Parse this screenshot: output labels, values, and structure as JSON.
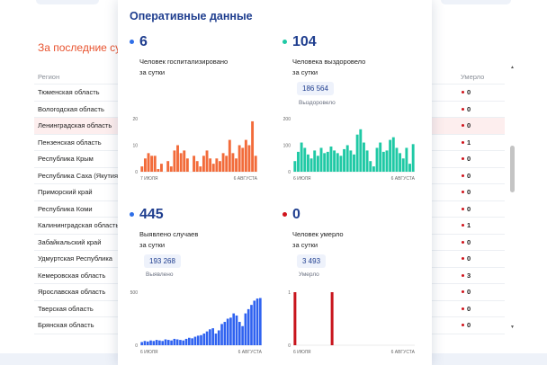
{
  "background": {
    "section_title": "За последние сутки",
    "col_region": "Регион",
    "col_deaths": "Умерло",
    "rows": [
      {
        "name": "Тюменская область",
        "deaths": "0",
        "highlight": false
      },
      {
        "name": "Вологодская область",
        "deaths": "0",
        "highlight": false
      },
      {
        "name": "Ленинградская область",
        "deaths": "0",
        "highlight": true
      },
      {
        "name": "Пензенская область",
        "deaths": "1",
        "highlight": false
      },
      {
        "name": "Республика Крым",
        "deaths": "0",
        "highlight": false
      },
      {
        "name": "Республика Саха (Якутия)",
        "deaths": "0",
        "highlight": false
      },
      {
        "name": "Приморский край",
        "deaths": "0",
        "highlight": false
      },
      {
        "name": "Республика Коми",
        "deaths": "0",
        "highlight": false
      },
      {
        "name": "Калининградская область",
        "deaths": "1",
        "highlight": false
      },
      {
        "name": "Забайкальский край",
        "deaths": "0",
        "highlight": false
      },
      {
        "name": "Удмуртская Республика",
        "deaths": "0",
        "highlight": false
      },
      {
        "name": "Кемеровская область",
        "deaths": "3",
        "highlight": false
      },
      {
        "name": "Ярославская область",
        "deaths": "0",
        "highlight": false
      },
      {
        "name": "Тверская область",
        "deaths": "0",
        "highlight": false
      },
      {
        "name": "Брянская область",
        "deaths": "0",
        "highlight": false
      }
    ]
  },
  "modal": {
    "title": "Оперативные данные",
    "panels": {
      "hospitalized": {
        "number": "6",
        "desc_line1": "Человек госпитализировано",
        "desc_line2": "за сутки",
        "dot_color": "#2f6fe8"
      },
      "recovered": {
        "number": "104",
        "desc_line1": "Человека выздоровело",
        "desc_line2": "за сутки",
        "total": "186 564",
        "total_label": "Выздоровело",
        "dot_color": "#1fc9a5"
      },
      "infected": {
        "number": "445",
        "desc_line1": "Выявлено случаев",
        "desc_line2": "за сутки",
        "total": "193 268",
        "total_label": "Выявлено",
        "dot_color": "#2f6fe8"
      },
      "died": {
        "number": "0",
        "desc_line1": "Человек умерло",
        "desc_line2": "за сутки",
        "total": "3 493",
        "total_label": "Умерло",
        "dot_color": "#d0141c"
      }
    }
  },
  "chart_data": [
    {
      "type": "bar",
      "series": [
        {
          "values": [
            2,
            5,
            7,
            6,
            6,
            1,
            3,
            0,
            4,
            2,
            8,
            10,
            7,
            8,
            5,
            0,
            6,
            4,
            2,
            6,
            8,
            5,
            3,
            5,
            4,
            7,
            6,
            12,
            7,
            5,
            10,
            9,
            12,
            10,
            19,
            6
          ]
        }
      ],
      "x_tick_labels": [
        "7 ИЮЛЯ",
        "6 АВГУСТА"
      ],
      "y_ticks": [
        "0",
        "10",
        "20"
      ],
      "ylim": [
        0,
        20
      ],
      "color": "#f26b3a"
    },
    {
      "type": "bar",
      "series": [
        {
          "values": [
            40,
            75,
            110,
            90,
            65,
            50,
            80,
            60,
            90,
            70,
            75,
            95,
            80,
            70,
            60,
            85,
            100,
            80,
            65,
            140,
            160,
            110,
            80,
            40,
            20,
            90,
            110,
            75,
            80,
            120,
            130,
            90,
            70,
            50,
            90,
            30,
            104
          ]
        }
      ],
      "x_tick_labels": [
        "6 ИЮЛЯ",
        "6 АВГУСТА"
      ],
      "y_ticks": [
        "0",
        "100",
        "200"
      ],
      "ylim": [
        0,
        200
      ],
      "color": "#1fc9a5"
    },
    {
      "type": "bar",
      "series": [
        {
          "values": [
            30,
            40,
            35,
            45,
            40,
            50,
            45,
            40,
            55,
            50,
            45,
            60,
            55,
            50,
            45,
            60,
            70,
            65,
            80,
            90,
            95,
            110,
            130,
            150,
            160,
            110,
            140,
            200,
            220,
            250,
            260,
            300,
            280,
            220,
            180,
            300,
            340,
            380,
            420,
            440,
            445
          ]
        }
      ],
      "x_tick_labels": [
        "6 ИЮЛЯ",
        "6 АВГУСТА"
      ],
      "y_ticks": [
        "0",
        "500"
      ],
      "ylim": [
        0,
        500
      ],
      "color": "#2f62f0"
    },
    {
      "type": "bar",
      "series": [
        {
          "values": [
            1,
            0,
            0,
            0,
            0,
            0,
            0,
            0,
            0,
            0,
            0,
            1,
            0,
            0,
            0,
            0,
            0,
            0,
            0,
            0,
            0,
            0,
            0,
            0,
            0,
            0,
            0,
            0,
            0,
            0,
            0,
            0,
            0,
            0,
            0,
            0
          ]
        }
      ],
      "x_tick_labels": [
        "6 ИЮЛЯ",
        "6 АВГУСТА"
      ],
      "y_ticks": [
        "0",
        "1"
      ],
      "ylim": [
        0,
        1
      ],
      "color": "#c8141c"
    }
  ]
}
